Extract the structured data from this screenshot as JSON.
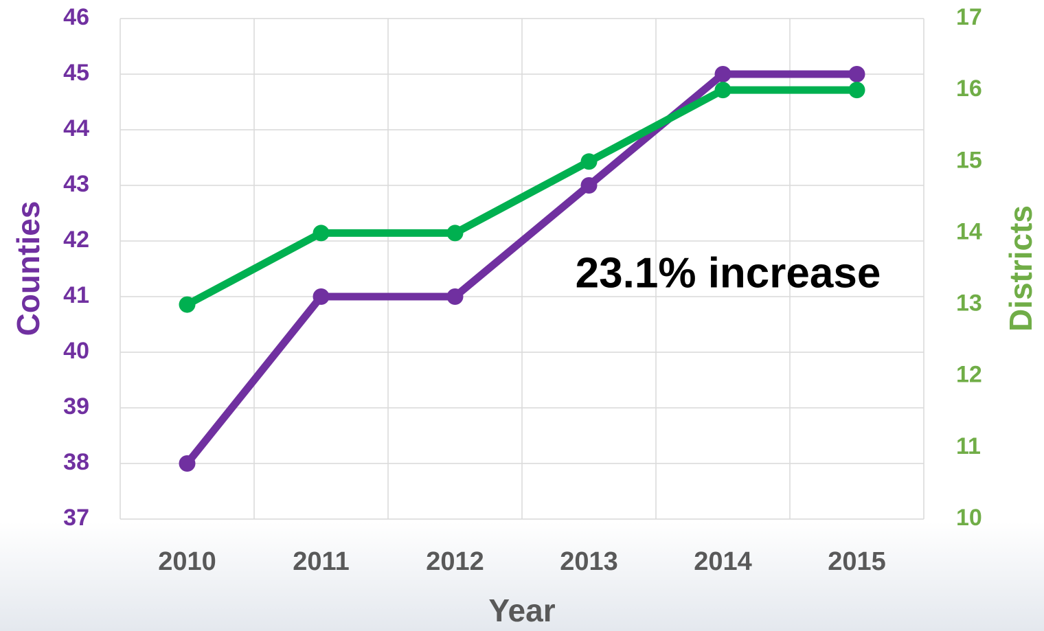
{
  "chart_data": {
    "type": "line",
    "categories": [
      "2010",
      "2011",
      "2012",
      "2013",
      "2014",
      "2015"
    ],
    "series": [
      {
        "name": "Counties",
        "color": "#7030a0",
        "values": [
          38,
          41,
          41,
          43,
          45,
          45
        ]
      },
      {
        "name": "Districts",
        "color": "#00b050",
        "axis": "y2",
        "values": [
          13,
          14,
          14,
          15,
          16,
          16
        ]
      }
    ],
    "ylim": [
      37,
      46
    ],
    "yticks": [
      37,
      38,
      39,
      40,
      41,
      42,
      43,
      44,
      45,
      46
    ],
    "y2lim": [
      10,
      17
    ],
    "y2ticks": [
      10,
      11,
      12,
      13,
      14,
      15,
      16,
      17
    ],
    "ylabel": "Counties",
    "y2label": "Districts",
    "xlabel": "Year",
    "annotation": "23.1% increase",
    "grid": true
  }
}
